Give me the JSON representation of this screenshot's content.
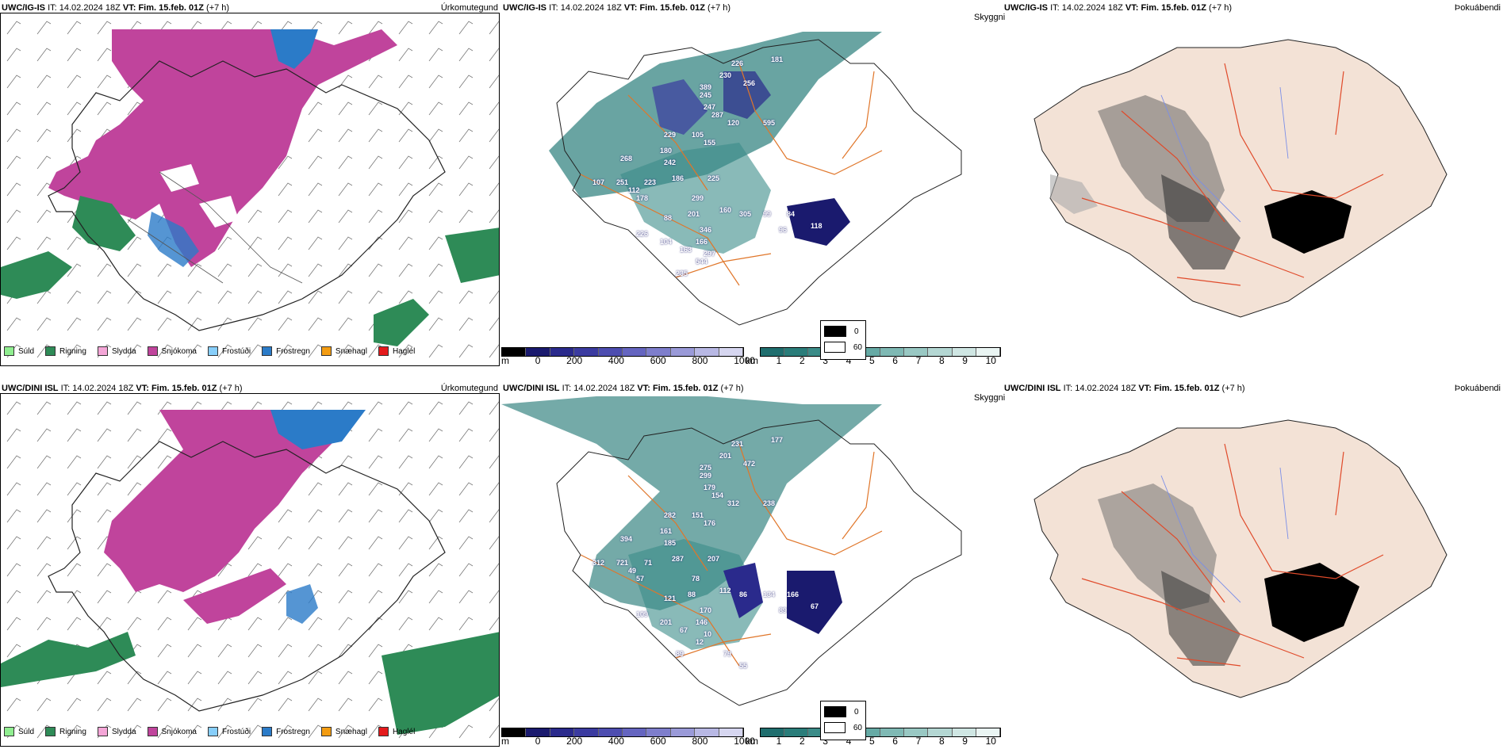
{
  "rows": [
    {
      "model_label": "UWC/IG-IS",
      "it_label": "IT:",
      "it_value": "14.02.2024 18Z",
      "vt_label": "VT:",
      "vt_value": "Fim. 15.feb. 01Z",
      "lead": "(+7 h)",
      "ceiling_numbers": [
        "226",
        "181",
        "389",
        "230",
        "256",
        "245",
        "247",
        "287",
        "120",
        "595",
        "229",
        "105",
        "155",
        "180",
        "268",
        "242",
        "186",
        "225",
        "107",
        "251",
        "223",
        "112",
        "178",
        "299",
        "201",
        "160",
        "305",
        "99",
        "84",
        "96",
        "118",
        "226",
        "88",
        "346",
        "104",
        "166",
        "297",
        "163",
        "544",
        "235"
      ]
    },
    {
      "model_label": "UWC/DINI ISL",
      "it_label": "IT:",
      "it_value": "14.02.2024 18Z",
      "vt_label": "VT:",
      "vt_value": "Fim. 15.feb. 01Z",
      "lead": "(+7 h)",
      "ceiling_numbers": [
        "231",
        "177",
        "275",
        "201",
        "472",
        "299",
        "179",
        "154",
        "312",
        "238",
        "282",
        "151",
        "176",
        "161",
        "394",
        "185",
        "287",
        "207",
        "312",
        "721",
        "71",
        "49",
        "57",
        "78",
        "88",
        "112",
        "86",
        "134",
        "166",
        "89",
        "67",
        "109",
        "121",
        "170",
        "201",
        "146",
        "10",
        "67",
        "12",
        "89",
        "79",
        "55"
      ]
    }
  ],
  "panel_titles": {
    "precip_type": "Úrkomutegund",
    "ceiling": "Skyggni",
    "fog": "Þokuábendi"
  },
  "precip_legend": [
    {
      "label": "Súld",
      "color": "#90ee90"
    },
    {
      "label": "Rigning",
      "color": "#2e8b57"
    },
    {
      "label": "Slydda",
      "color": "#f4a6d7"
    },
    {
      "label": "Snjókoma",
      "color": "#c0449c"
    },
    {
      "label": "Frostúði",
      "color": "#87cefa"
    },
    {
      "label": "Frostregn",
      "color": "#2b7bc8"
    },
    {
      "label": "Snæhagl",
      "color": "#f39c12"
    },
    {
      "label": "Haglél",
      "color": "#e41a1c"
    }
  ],
  "ceiling_scale_m": {
    "unit": "m",
    "ticks": [
      "0",
      "200",
      "400",
      "600",
      "800",
      "1000"
    ],
    "colors": [
      "#000000",
      "#1a1a6e",
      "#2a2a8c",
      "#3b3ba0",
      "#4d4db0",
      "#6565c0",
      "#7e7ecc",
      "#9a9ad8",
      "#b8b8e4",
      "#d6d6f0"
    ]
  },
  "visibility_scale_km": {
    "unit": "km",
    "ticks": [
      "1",
      "2",
      "3",
      "4",
      "5",
      "6",
      "7",
      "8",
      "9",
      "10"
    ],
    "colors": [
      "#1f6e6e",
      "#2a7d7a",
      "#3b8c88",
      "#4f9b96",
      "#66aaa5",
      "#7fb9b4",
      "#99c8c3",
      "#b4d7d3",
      "#cfe6e3",
      "#eaf5f3"
    ]
  },
  "fog_legend": [
    {
      "label": "0",
      "color": "#000000"
    },
    {
      "label": "60",
      "color": "#ffffff"
    }
  ]
}
